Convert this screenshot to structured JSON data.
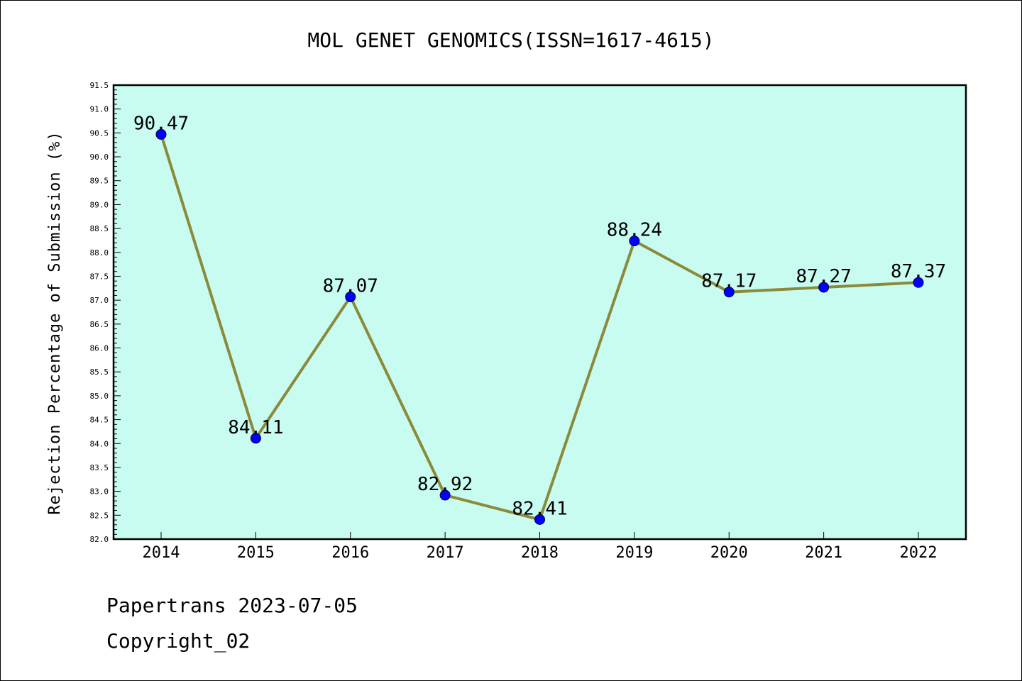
{
  "chart_data": {
    "type": "line",
    "title": "MOL GENET GENOMICS(ISSN=1617-4615)",
    "xlabel": "",
    "ylabel": "Rejection Percentage of Submission (%)",
    "categories": [
      "2014",
      "2015",
      "2016",
      "2017",
      "2018",
      "2019",
      "2020",
      "2021",
      "2022"
    ],
    "series": [
      {
        "values": [
          90.47,
          84.11,
          87.07,
          82.92,
          82.41,
          88.24,
          87.17,
          87.27,
          87.37
        ],
        "labels": [
          "90.47",
          "84.11",
          "87.07",
          "82.92",
          "82.41",
          "88.24",
          "87.17",
          "87.27",
          "87.37"
        ]
      }
    ],
    "ylim": [
      82.0,
      91.5
    ],
    "ytick_labels": [
      "82.0",
      "82.5",
      "83.0",
      "83.5",
      "84.0",
      "84.5",
      "85.0",
      "85.5",
      "86.0",
      "86.5",
      "87.0",
      "87.5",
      "88.0",
      "88.5",
      "89.0",
      "89.5",
      "90.0",
      "90.5",
      "91.0",
      "91.5"
    ],
    "grid": false,
    "colors": {
      "plot_background": "#c8fcf0",
      "line": "#8b8a3a",
      "marker": "#0000ff"
    }
  },
  "footer": {
    "line1": "Papertrans 2023-07-05",
    "line2": "Copyright_02"
  }
}
